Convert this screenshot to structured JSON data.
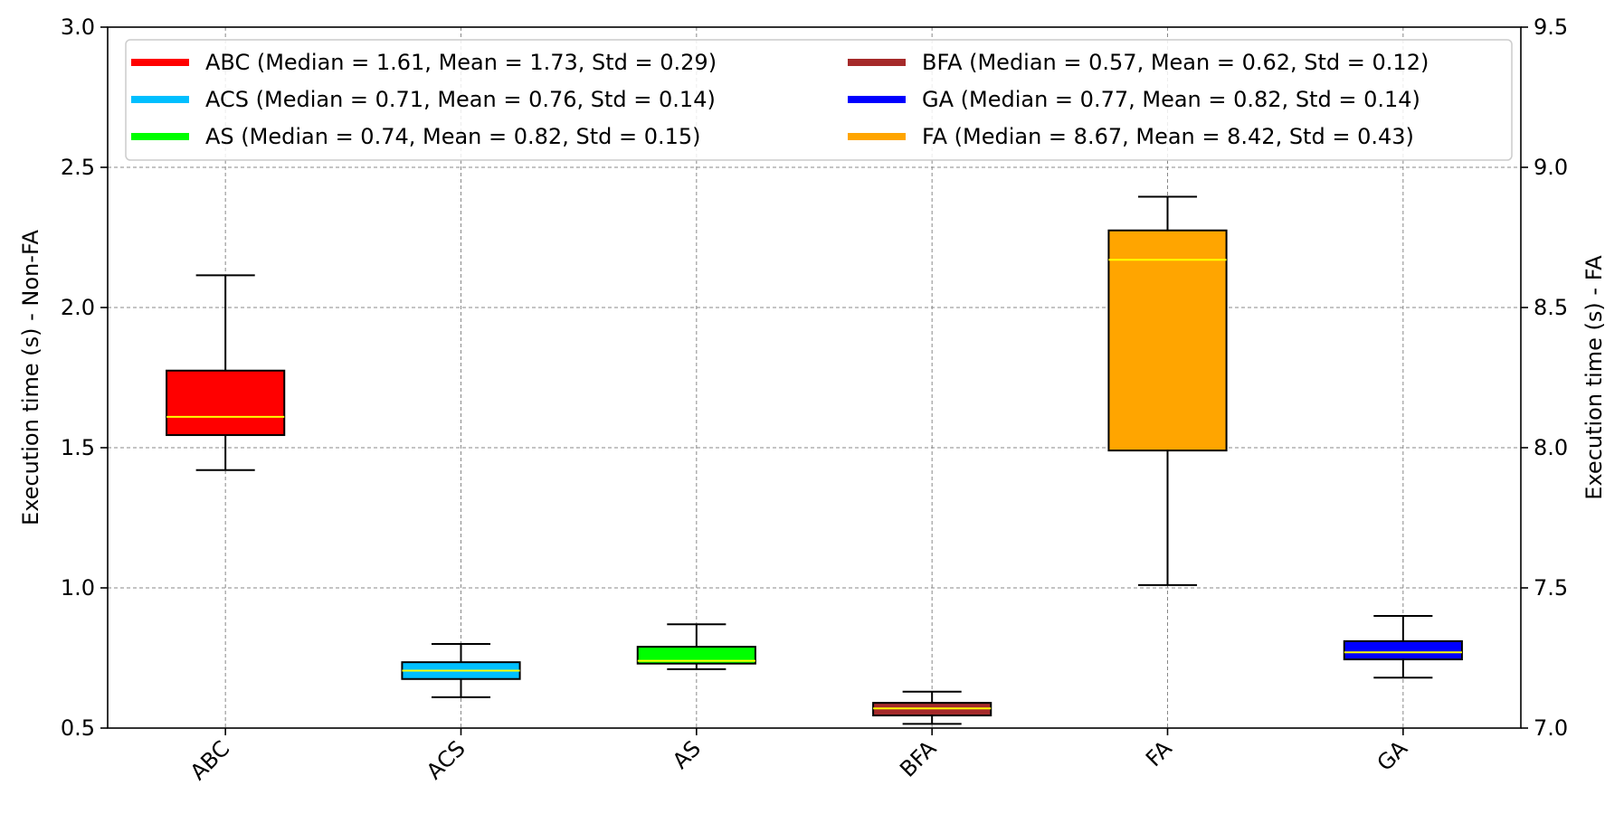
{
  "chart_data": {
    "type": "box",
    "categories": [
      "ABC",
      "ACS",
      "AS",
      "BFA",
      "FA",
      "GA"
    ],
    "left_axis": {
      "label": "Execution time (s) - Non-FA",
      "ylim": [
        0.5,
        3.0
      ],
      "ticks": [
        "0.5",
        "1.0",
        "1.5",
        "2.0",
        "2.5",
        "3.0"
      ]
    },
    "right_axis": {
      "label": "Execution time (s) - FA",
      "ylim": [
        7.0,
        9.5
      ],
      "ticks": [
        "7.0",
        "7.5",
        "8.0",
        "8.5",
        "9.0",
        "9.5"
      ]
    },
    "grid": true,
    "legend_position": "top",
    "median_line_color": "#ffff00",
    "boxes": [
      {
        "category": "ABC",
        "axis": "left",
        "color": "#ff0000",
        "whisker_low": 1.42,
        "q1": 1.545,
        "median": 1.61,
        "q3": 1.775,
        "whisker_high": 2.115,
        "legend": "ABC (Median = 1.61, Mean = 1.73, Std = 0.29)"
      },
      {
        "category": "ACS",
        "axis": "left",
        "color": "#00bfff",
        "whisker_low": 0.61,
        "q1": 0.675,
        "median": 0.705,
        "q3": 0.735,
        "whisker_high": 0.8,
        "legend": "ACS (Median = 0.71, Mean = 0.76, Std = 0.14)"
      },
      {
        "category": "AS",
        "axis": "left",
        "color": "#00ff00",
        "whisker_low": 0.71,
        "q1": 0.73,
        "median": 0.74,
        "q3": 0.79,
        "whisker_high": 0.87,
        "legend": "AS (Median = 0.74, Mean = 0.82, Std = 0.15)"
      },
      {
        "category": "BFA",
        "axis": "left",
        "color": "#a52a2a",
        "whisker_low": 0.515,
        "q1": 0.545,
        "median": 0.57,
        "q3": 0.59,
        "whisker_high": 0.63,
        "legend": "BFA (Median = 0.57, Mean = 0.62, Std = 0.12)"
      },
      {
        "category": "FA",
        "axis": "right",
        "color": "#ffa500",
        "whisker_low": 7.51,
        "q1": 7.99,
        "median": 8.67,
        "q3": 8.775,
        "whisker_high": 8.895,
        "legend": "FA (Median = 8.67, Mean = 8.42, Std = 0.43)"
      },
      {
        "category": "GA",
        "axis": "left",
        "color": "#0000ff",
        "whisker_low": 0.68,
        "q1": 0.745,
        "median": 0.77,
        "q3": 0.81,
        "whisker_high": 0.9,
        "legend": "GA (Median = 0.77, Mean = 0.82, Std = 0.14)"
      }
    ],
    "legend_order": [
      "ABC",
      "ACS",
      "AS",
      "BFA",
      "GA",
      "FA"
    ]
  }
}
